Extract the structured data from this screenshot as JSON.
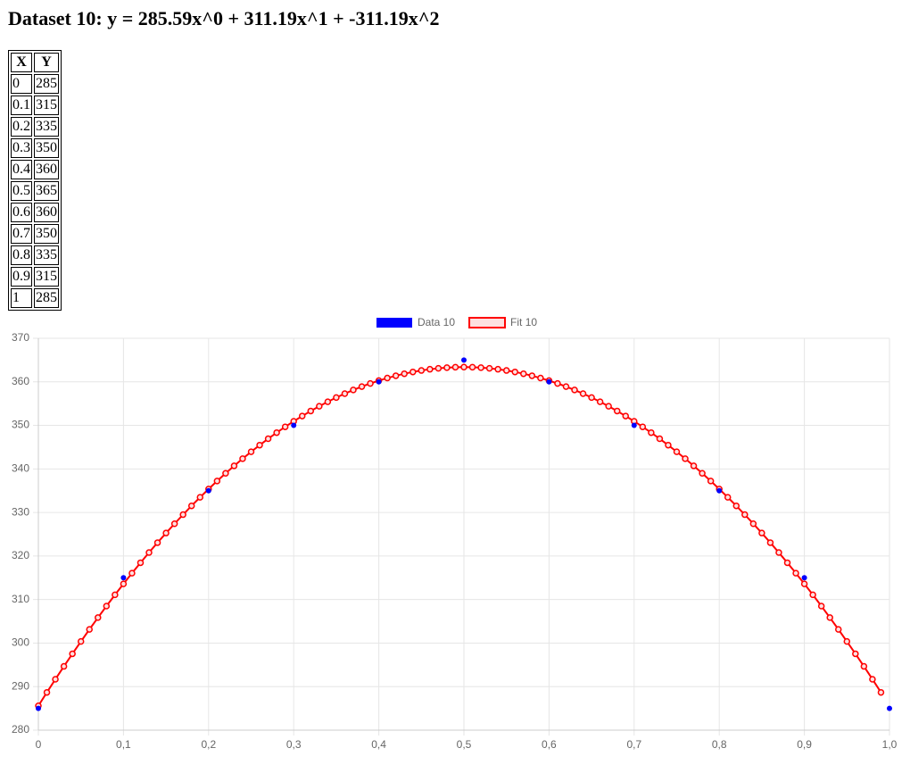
{
  "title": "Dataset 10: y = 285.59x^0 + 311.19x^1 + -311.19x^2",
  "table": {
    "columns": [
      "X",
      "Y"
    ]
  },
  "chart_data": {
    "type": "scatter",
    "xlim": [
      0,
      1
    ],
    "ylim": [
      280,
      370
    ],
    "xticks": [
      0,
      {
        "value": 0.1,
        "label": "0,1"
      },
      {
        "value": 0.2,
        "label": "0,2"
      },
      {
        "value": 0.3,
        "label": "0,3"
      },
      {
        "value": 0.4,
        "label": "0,4"
      },
      {
        "value": 0.5,
        "label": "0,5"
      },
      {
        "value": 0.6,
        "label": "0,6"
      },
      {
        "value": 0.7,
        "label": "0,7"
      },
      {
        "value": 0.8,
        "label": "0,8"
      },
      {
        "value": 0.9,
        "label": "0,9"
      },
      {
        "value": 1,
        "label": "1,0"
      }
    ],
    "yticks": [
      280,
      290,
      300,
      310,
      320,
      330,
      340,
      350,
      360,
      370
    ],
    "grid": true,
    "legend": "top",
    "series": [
      {
        "name": "Data 10",
        "type": "scatter",
        "color": "#0000ff",
        "x": [
          0,
          0.1,
          0.2,
          0.3,
          0.4,
          0.5,
          0.6,
          0.7,
          0.8,
          0.9,
          1
        ],
        "values": [
          285,
          315,
          335,
          350,
          360,
          365,
          360,
          350,
          335,
          315,
          285
        ]
      },
      {
        "name": "Fit 10",
        "type": "line",
        "color": "#ff0000",
        "x": [
          0,
          0.01,
          0.02,
          0.03,
          0.04,
          0.05,
          0.06,
          0.07,
          0.08,
          0.09,
          0.1,
          0.11,
          0.12,
          0.13,
          0.14,
          0.15,
          0.16,
          0.17,
          0.18,
          0.19,
          0.2,
          0.21,
          0.22,
          0.23,
          0.24,
          0.25,
          0.26,
          0.27,
          0.28,
          0.29,
          0.3,
          0.31,
          0.32,
          0.33,
          0.34,
          0.35,
          0.36,
          0.37,
          0.38,
          0.39,
          0.4,
          0.41,
          0.42,
          0.43,
          0.44,
          0.45,
          0.46,
          0.47,
          0.48,
          0.49,
          0.5,
          0.51,
          0.52,
          0.53,
          0.54,
          0.55,
          0.56,
          0.57,
          0.58,
          0.59,
          0.6,
          0.61,
          0.62,
          0.63,
          0.64,
          0.65,
          0.66,
          0.67,
          0.68,
          0.69,
          0.7,
          0.71,
          0.72,
          0.73,
          0.74,
          0.75,
          0.76,
          0.77,
          0.78,
          0.79,
          0.8,
          0.81,
          0.82,
          0.83,
          0.84,
          0.85,
          0.86,
          0.87,
          0.88,
          0.89,
          0.9,
          0.91,
          0.92,
          0.93,
          0.94,
          0.95,
          0.96,
          0.97,
          0.98,
          0.99
        ],
        "values": [
          285.59,
          288.67,
          291.69,
          294.65,
          297.54,
          300.37,
          303.14,
          305.85,
          308.49,
          311.08,
          313.6,
          316.06,
          318.45,
          320.79,
          323.06,
          325.27,
          327.41,
          329.5,
          331.52,
          333.48,
          335.38,
          337.22,
          338.99,
          340.7,
          342.35,
          343.94,
          345.46,
          346.93,
          348.33,
          349.66,
          350.94,
          352.15,
          353.3,
          354.39,
          355.42,
          356.39,
          357.29,
          358.13,
          358.91,
          359.62,
          360.28,
          360.87,
          361.4,
          361.86,
          362.27,
          362.61,
          362.89,
          363.11,
          363.26,
          363.36,
          363.39,
          363.36,
          363.26,
          363.11,
          362.89,
          362.61,
          362.27,
          361.86,
          361.4,
          360.87,
          360.28,
          359.62,
          358.91,
          358.13,
          357.29,
          356.39,
          355.42,
          354.39,
          353.3,
          352.15,
          350.94,
          349.66,
          348.33,
          346.93,
          345.46,
          343.94,
          342.35,
          340.7,
          338.99,
          337.22,
          335.38,
          333.48,
          331.52,
          329.5,
          327.41,
          325.27,
          323.06,
          320.79,
          318.45,
          316.06,
          313.6,
          311.08,
          308.49,
          305.85,
          303.14,
          300.37,
          297.54,
          294.65,
          291.69,
          288.67
        ]
      }
    ]
  }
}
